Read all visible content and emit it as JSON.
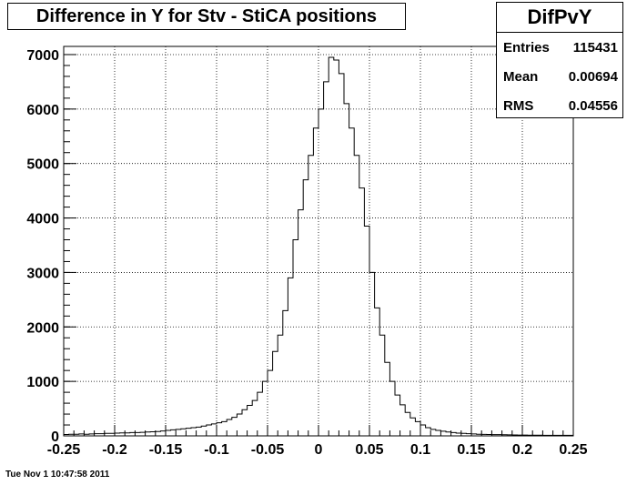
{
  "chart_data": {
    "type": "histogram",
    "title": "Difference in Y for Stv - StiCA positions",
    "xlim": [
      -0.25,
      0.25
    ],
    "ylim": [
      0,
      7150
    ],
    "bin_width": 0.005,
    "x_ticks": [
      "-0.25",
      "-0.2",
      "-0.15",
      "-0.1",
      "-0.05",
      "0",
      "0.05",
      "0.1",
      "0.15",
      "0.2",
      "0.25"
    ],
    "x_tick_values": [
      -0.25,
      -0.2,
      -0.15,
      -0.1,
      -0.05,
      0,
      0.05,
      0.1,
      0.15,
      0.2,
      0.25
    ],
    "y_ticks": [
      "0",
      "1000",
      "2000",
      "3000",
      "4000",
      "5000",
      "6000",
      "7000"
    ],
    "y_tick_values": [
      0,
      1000,
      2000,
      3000,
      4000,
      5000,
      6000,
      7000
    ],
    "grid": true,
    "values": [
      25,
      30,
      30,
      35,
      30,
      35,
      40,
      40,
      45,
      45,
      50,
      55,
      55,
      60,
      60,
      65,
      70,
      75,
      80,
      90,
      100,
      110,
      120,
      130,
      140,
      150,
      160,
      180,
      200,
      220,
      240,
      260,
      300,
      340,
      400,
      480,
      560,
      650,
      800,
      1000,
      1200,
      1550,
      1850,
      2300,
      2900,
      3600,
      4150,
      4700,
      5150,
      5650,
      6000,
      6500,
      6950,
      6900,
      6650,
      6100,
      5650,
      5150,
      4550,
      3850,
      3000,
      2350,
      1850,
      1350,
      1000,
      750,
      570,
      430,
      330,
      260,
      200,
      150,
      120,
      100,
      85,
      70,
      60,
      50,
      45,
      40,
      35,
      30,
      28,
      26,
      24,
      22,
      20,
      18,
      16,
      15,
      14,
      13,
      12,
      12,
      11,
      10,
      10,
      10,
      10,
      10
    ],
    "line_color": "#000000"
  },
  "stats": {
    "name": "DifPvY",
    "entries_label": "Entries",
    "entries_value": "115431",
    "mean_label": "Mean",
    "mean_value": "0.00694",
    "rms_label": "RMS",
    "rms_value": "0.04556"
  },
  "footer": {
    "timestamp": "Tue Nov  1 10:47:58 2011"
  }
}
